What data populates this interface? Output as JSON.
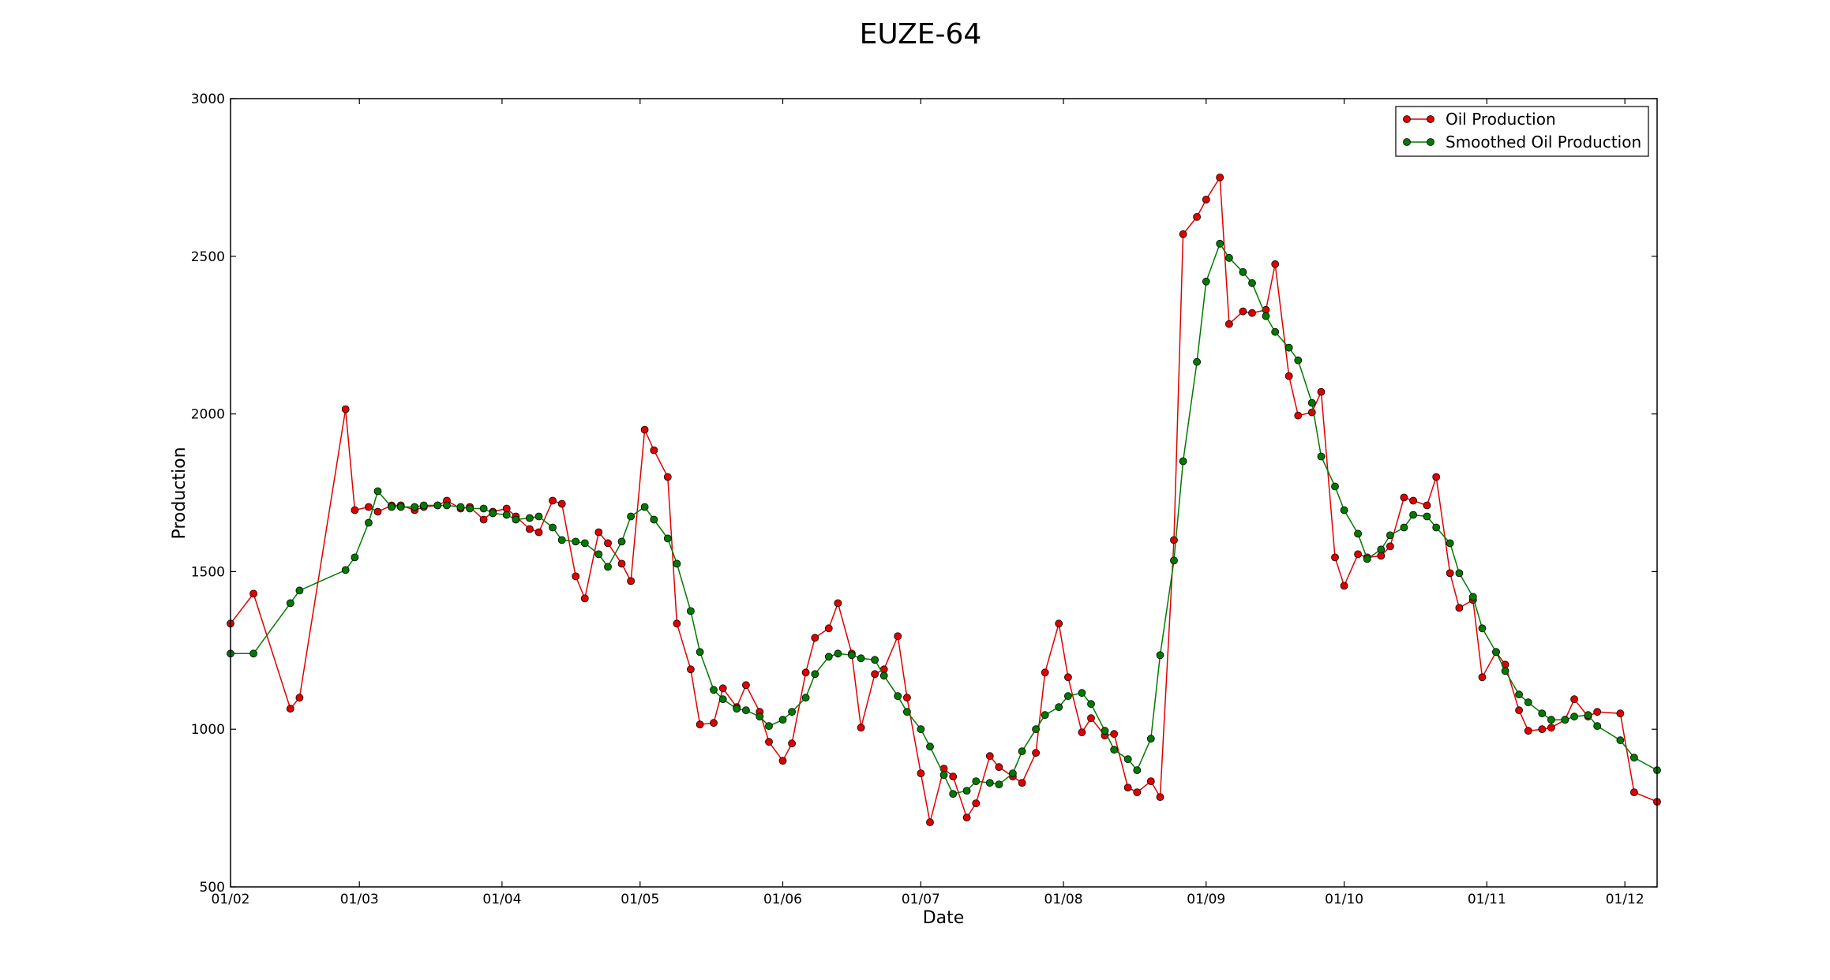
{
  "chart_data": {
    "type": "line",
    "title": "EUZE-64",
    "xlabel": "Date",
    "ylabel": "Production",
    "ylim": [
      500,
      3000
    ],
    "yticks": [
      500,
      1000,
      1500,
      2000,
      2500,
      3000
    ],
    "xlim": [
      "2014-02-01",
      "2014-12-08"
    ],
    "xticks": [
      {
        "date": "2014-02-01",
        "label": "01/02"
      },
      {
        "date": "2014-03-01",
        "label": "01/03"
      },
      {
        "date": "2014-04-01",
        "label": "01/04"
      },
      {
        "date": "2014-05-01",
        "label": "01/05"
      },
      {
        "date": "2014-06-01",
        "label": "01/06"
      },
      {
        "date": "2014-07-01",
        "label": "01/07"
      },
      {
        "date": "2014-08-01",
        "label": "01/08"
      },
      {
        "date": "2014-09-01",
        "label": "01/09"
      },
      {
        "date": "2014-10-01",
        "label": "01/10"
      },
      {
        "date": "2014-11-01",
        "label": "01/11"
      },
      {
        "date": "2014-12-01",
        "label": "01/12"
      }
    ],
    "grid": false,
    "legend": "top-right",
    "series": [
      {
        "name": "Oil Production",
        "color": "#e00000",
        "points": [
          [
            "2014-02-01",
            1335
          ],
          [
            "2014-02-06",
            1430
          ],
          [
            "2014-02-14",
            1065
          ],
          [
            "2014-02-16",
            1100
          ],
          [
            "2014-02-26",
            2015
          ],
          [
            "2014-02-28",
            1695
          ],
          [
            "2014-03-03",
            1705
          ],
          [
            "2014-03-05",
            1690
          ],
          [
            "2014-03-08",
            1710
          ],
          [
            "2014-03-10",
            1710
          ],
          [
            "2014-03-13",
            1695
          ],
          [
            "2014-03-15",
            1705
          ],
          [
            "2014-03-18",
            1710
          ],
          [
            "2014-03-20",
            1725
          ],
          [
            "2014-03-23",
            1700
          ],
          [
            "2014-03-25",
            1705
          ],
          [
            "2014-03-28",
            1665
          ],
          [
            "2014-03-30",
            1690
          ],
          [
            "2014-04-02",
            1700
          ],
          [
            "2014-04-04",
            1675
          ],
          [
            "2014-04-07",
            1635
          ],
          [
            "2014-04-09",
            1625
          ],
          [
            "2014-04-12",
            1725
          ],
          [
            "2014-04-14",
            1715
          ],
          [
            "2014-04-17",
            1485
          ],
          [
            "2014-04-19",
            1415
          ],
          [
            "2014-04-22",
            1625
          ],
          [
            "2014-04-24",
            1590
          ],
          [
            "2014-04-27",
            1525
          ],
          [
            "2014-04-29",
            1470
          ],
          [
            "2014-05-02",
            1950
          ],
          [
            "2014-05-04",
            1885
          ],
          [
            "2014-05-07",
            1800
          ],
          [
            "2014-05-09",
            1335
          ],
          [
            "2014-05-12",
            1190
          ],
          [
            "2014-05-14",
            1015
          ],
          [
            "2014-05-17",
            1020
          ],
          [
            "2014-05-19",
            1130
          ],
          [
            "2014-05-22",
            1070
          ],
          [
            "2014-05-24",
            1140
          ],
          [
            "2014-05-27",
            1055
          ],
          [
            "2014-05-29",
            960
          ],
          [
            "2014-06-01",
            900
          ],
          [
            "2014-06-03",
            955
          ],
          [
            "2014-06-06",
            1180
          ],
          [
            "2014-06-08",
            1290
          ],
          [
            "2014-06-11",
            1320
          ],
          [
            "2014-06-13",
            1400
          ],
          [
            "2014-06-16",
            1240
          ],
          [
            "2014-06-18",
            1005
          ],
          [
            "2014-06-21",
            1175
          ],
          [
            "2014-06-23",
            1190
          ],
          [
            "2014-06-26",
            1295
          ],
          [
            "2014-06-28",
            1100
          ],
          [
            "2014-07-01",
            860
          ],
          [
            "2014-07-03",
            705
          ],
          [
            "2014-07-06",
            875
          ],
          [
            "2014-07-08",
            850
          ],
          [
            "2014-07-11",
            720
          ],
          [
            "2014-07-13",
            765
          ],
          [
            "2014-07-16",
            915
          ],
          [
            "2014-07-18",
            880
          ],
          [
            "2014-07-21",
            850
          ],
          [
            "2014-07-23",
            830
          ],
          [
            "2014-07-26",
            925
          ],
          [
            "2014-07-28",
            1180
          ],
          [
            "2014-07-31",
            1335
          ],
          [
            "2014-08-02",
            1165
          ],
          [
            "2014-08-05",
            990
          ],
          [
            "2014-08-07",
            1035
          ],
          [
            "2014-08-10",
            980
          ],
          [
            "2014-08-12",
            985
          ],
          [
            "2014-08-15",
            815
          ],
          [
            "2014-08-17",
            800
          ],
          [
            "2014-08-20",
            835
          ],
          [
            "2014-08-22",
            785
          ],
          [
            "2014-08-25",
            1600
          ],
          [
            "2014-08-27",
            2570
          ],
          [
            "2014-08-30",
            2625
          ],
          [
            "2014-09-01",
            2680
          ],
          [
            "2014-09-04",
            2750
          ],
          [
            "2014-09-06",
            2285
          ],
          [
            "2014-09-09",
            2325
          ],
          [
            "2014-09-11",
            2320
          ],
          [
            "2014-09-14",
            2330
          ],
          [
            "2014-09-16",
            2475
          ],
          [
            "2014-09-19",
            2120
          ],
          [
            "2014-09-21",
            1995
          ],
          [
            "2014-09-24",
            2005
          ],
          [
            "2014-09-26",
            2070
          ],
          [
            "2014-09-29",
            1545
          ],
          [
            "2014-10-01",
            1455
          ],
          [
            "2014-10-04",
            1555
          ],
          [
            "2014-10-06",
            1545
          ],
          [
            "2014-10-09",
            1550
          ],
          [
            "2014-10-11",
            1580
          ],
          [
            "2014-10-14",
            1735
          ],
          [
            "2014-10-16",
            1725
          ],
          [
            "2014-10-19",
            1710
          ],
          [
            "2014-10-21",
            1800
          ],
          [
            "2014-10-24",
            1495
          ],
          [
            "2014-10-26",
            1385
          ],
          [
            "2014-10-29",
            1410
          ],
          [
            "2014-10-31",
            1165
          ],
          [
            "2014-11-03",
            1245
          ],
          [
            "2014-11-05",
            1205
          ],
          [
            "2014-11-08",
            1060
          ],
          [
            "2014-11-10",
            995
          ],
          [
            "2014-11-13",
            1000
          ],
          [
            "2014-11-15",
            1005
          ],
          [
            "2014-11-18",
            1030
          ],
          [
            "2014-11-20",
            1095
          ],
          [
            "2014-11-23",
            1040
          ],
          [
            "2014-11-25",
            1055
          ],
          [
            "2014-11-30",
            1050
          ],
          [
            "2014-12-03",
            800
          ],
          [
            "2014-12-08",
            770
          ]
        ]
      },
      {
        "name": "Smoothed Oil Production",
        "color": "#007a00",
        "points": [
          [
            "2014-02-01",
            1240
          ],
          [
            "2014-02-06",
            1240
          ],
          [
            "2014-02-14",
            1400
          ],
          [
            "2014-02-16",
            1440
          ],
          [
            "2014-02-26",
            1505
          ],
          [
            "2014-02-28",
            1545
          ],
          [
            "2014-03-03",
            1655
          ],
          [
            "2014-03-05",
            1755
          ],
          [
            "2014-03-08",
            1705
          ],
          [
            "2014-03-10",
            1705
          ],
          [
            "2014-03-13",
            1705
          ],
          [
            "2014-03-15",
            1710
          ],
          [
            "2014-03-18",
            1710
          ],
          [
            "2014-03-20",
            1710
          ],
          [
            "2014-03-23",
            1705
          ],
          [
            "2014-03-25",
            1700
          ],
          [
            "2014-03-28",
            1700
          ],
          [
            "2014-03-30",
            1685
          ],
          [
            "2014-04-02",
            1680
          ],
          [
            "2014-04-04",
            1665
          ],
          [
            "2014-04-07",
            1670
          ],
          [
            "2014-04-09",
            1675
          ],
          [
            "2014-04-12",
            1640
          ],
          [
            "2014-04-14",
            1600
          ],
          [
            "2014-04-17",
            1595
          ],
          [
            "2014-04-19",
            1590
          ],
          [
            "2014-04-22",
            1555
          ],
          [
            "2014-04-24",
            1515
          ],
          [
            "2014-04-27",
            1595
          ],
          [
            "2014-04-29",
            1675
          ],
          [
            "2014-05-02",
            1705
          ],
          [
            "2014-05-04",
            1665
          ],
          [
            "2014-05-07",
            1605
          ],
          [
            "2014-05-09",
            1525
          ],
          [
            "2014-05-12",
            1375
          ],
          [
            "2014-05-14",
            1245
          ],
          [
            "2014-05-17",
            1125
          ],
          [
            "2014-05-19",
            1095
          ],
          [
            "2014-05-22",
            1065
          ],
          [
            "2014-05-24",
            1060
          ],
          [
            "2014-05-27",
            1040
          ],
          [
            "2014-05-29",
            1010
          ],
          [
            "2014-06-01",
            1030
          ],
          [
            "2014-06-03",
            1055
          ],
          [
            "2014-06-06",
            1100
          ],
          [
            "2014-06-08",
            1175
          ],
          [
            "2014-06-11",
            1230
          ],
          [
            "2014-06-13",
            1240
          ],
          [
            "2014-06-16",
            1235
          ],
          [
            "2014-06-18",
            1225
          ],
          [
            "2014-06-21",
            1220
          ],
          [
            "2014-06-23",
            1170
          ],
          [
            "2014-06-26",
            1105
          ],
          [
            "2014-06-28",
            1055
          ],
          [
            "2014-07-01",
            1000
          ],
          [
            "2014-07-03",
            945
          ],
          [
            "2014-07-06",
            855
          ],
          [
            "2014-07-08",
            795
          ],
          [
            "2014-07-11",
            805
          ],
          [
            "2014-07-13",
            835
          ],
          [
            "2014-07-16",
            830
          ],
          [
            "2014-07-18",
            825
          ],
          [
            "2014-07-21",
            860
          ],
          [
            "2014-07-23",
            930
          ],
          [
            "2014-07-26",
            1000
          ],
          [
            "2014-07-28",
            1045
          ],
          [
            "2014-07-31",
            1070
          ],
          [
            "2014-08-02",
            1105
          ],
          [
            "2014-08-05",
            1115
          ],
          [
            "2014-08-07",
            1080
          ],
          [
            "2014-08-10",
            995
          ],
          [
            "2014-08-12",
            935
          ],
          [
            "2014-08-15",
            905
          ],
          [
            "2014-08-17",
            870
          ],
          [
            "2014-08-20",
            970
          ],
          [
            "2014-08-22",
            1235
          ],
          [
            "2014-08-25",
            1535
          ],
          [
            "2014-08-27",
            1850
          ],
          [
            "2014-08-30",
            2165
          ],
          [
            "2014-09-01",
            2420
          ],
          [
            "2014-09-04",
            2540
          ],
          [
            "2014-09-06",
            2495
          ],
          [
            "2014-09-09",
            2450
          ],
          [
            "2014-09-11",
            2415
          ],
          [
            "2014-09-14",
            2310
          ],
          [
            "2014-09-16",
            2260
          ],
          [
            "2014-09-19",
            2210
          ],
          [
            "2014-09-21",
            2170
          ],
          [
            "2014-09-24",
            2035
          ],
          [
            "2014-09-26",
            1865
          ],
          [
            "2014-09-29",
            1770
          ],
          [
            "2014-10-01",
            1695
          ],
          [
            "2014-10-04",
            1620
          ],
          [
            "2014-10-06",
            1540
          ],
          [
            "2014-10-09",
            1570
          ],
          [
            "2014-10-11",
            1615
          ],
          [
            "2014-10-14",
            1640
          ],
          [
            "2014-10-16",
            1680
          ],
          [
            "2014-10-19",
            1675
          ],
          [
            "2014-10-21",
            1640
          ],
          [
            "2014-10-24",
            1590
          ],
          [
            "2014-10-26",
            1495
          ],
          [
            "2014-10-29",
            1420
          ],
          [
            "2014-10-31",
            1320
          ],
          [
            "2014-11-03",
            1245
          ],
          [
            "2014-11-05",
            1185
          ],
          [
            "2014-11-08",
            1110
          ],
          [
            "2014-11-10",
            1085
          ],
          [
            "2014-11-13",
            1050
          ],
          [
            "2014-11-15",
            1030
          ],
          [
            "2014-11-18",
            1030
          ],
          [
            "2014-11-20",
            1040
          ],
          [
            "2014-11-23",
            1045
          ],
          [
            "2014-11-25",
            1010
          ],
          [
            "2014-11-30",
            965
          ],
          [
            "2014-12-03",
            910
          ],
          [
            "2014-12-08",
            870
          ]
        ]
      }
    ]
  }
}
